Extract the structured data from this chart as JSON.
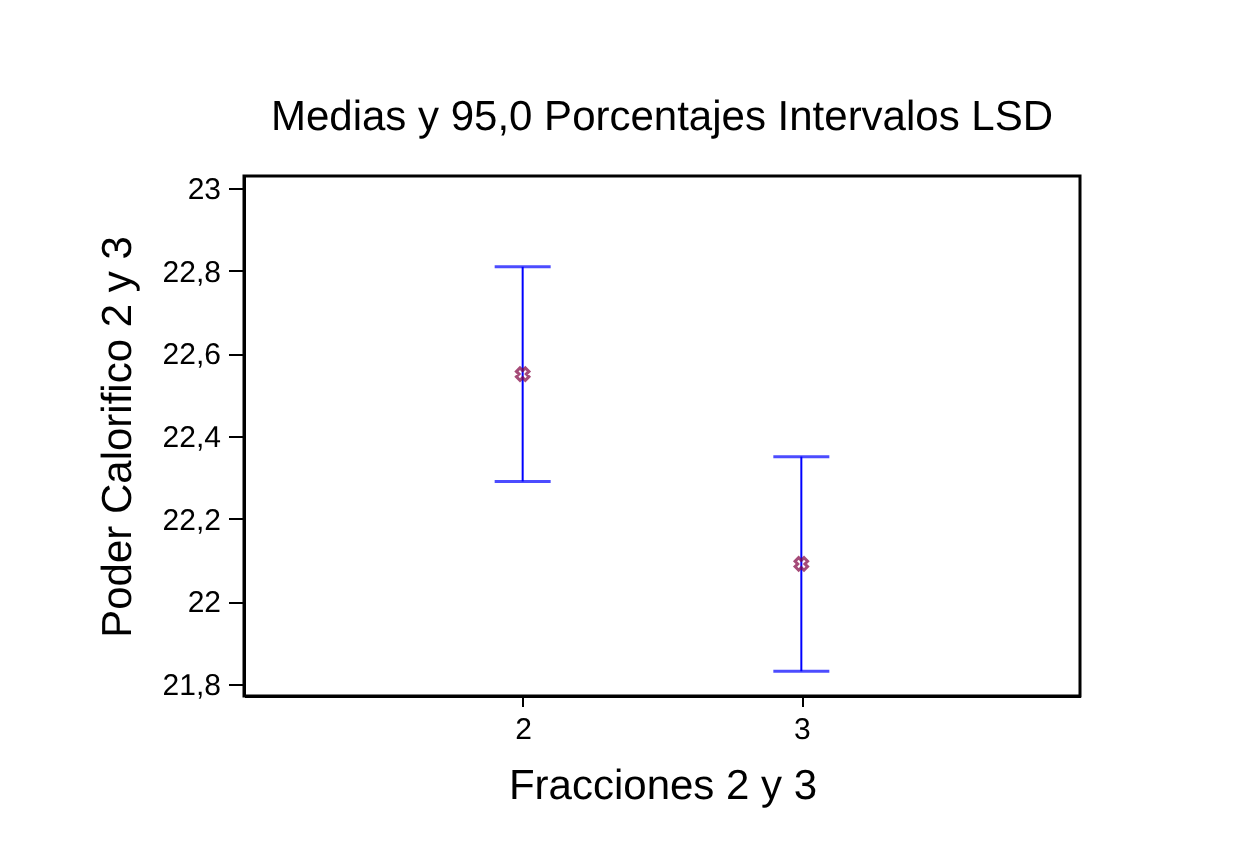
{
  "chart_data": {
    "type": "scatter",
    "title": "Medias y 95,0 Porcentajes Intervalos LSD",
    "xlabel": "Fracciones 2 y 3",
    "ylabel": "Poder Calorifico 2 y 3",
    "categories": [
      "2",
      "3"
    ],
    "series": [
      {
        "color": "#800040",
        "values": [
          22.55,
          22.09
        ],
        "errors": [
          [
            22.29,
            22.81
          ],
          [
            21.83,
            22.35
          ]
        ]
      }
    ],
    "ylim": [
      21.77,
      23.03
    ],
    "yticks": [
      {
        "value": 21.8,
        "label": "21,8"
      },
      22,
      {
        "value": 22.2,
        "label": "22,2"
      },
      {
        "value": 22.4,
        "label": "22,4"
      },
      {
        "value": 22.6,
        "label": "22,6"
      },
      {
        "value": 22.8,
        "label": "22,8"
      },
      23
    ],
    "marker": "cross",
    "grid": false
  }
}
